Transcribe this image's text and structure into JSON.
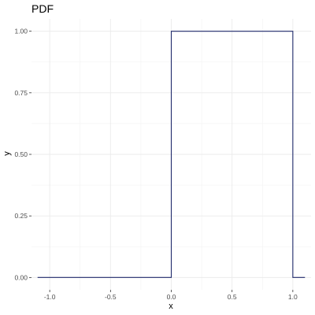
{
  "chart_data": {
    "type": "line",
    "title": "PDF",
    "xlabel": "x",
    "ylabel": "y",
    "xlim": [
      -1.15,
      1.15
    ],
    "ylim": [
      -0.05,
      1.05
    ],
    "x_ticks": [
      -1.0,
      -0.5,
      0.0,
      0.5,
      1.0
    ],
    "x_tick_labels": [
      "-1.0",
      "-0.5",
      "0.0",
      "0.5",
      "1.0"
    ],
    "y_ticks": [
      0.0,
      0.25,
      0.5,
      0.75,
      1.0
    ],
    "y_tick_labels": [
      "0.00",
      "0.25",
      "0.50",
      "0.75",
      "1.00"
    ],
    "grid": true,
    "series": [
      {
        "color": "#1f2a6b",
        "x": [
          -1.1,
          0.0,
          0.0,
          1.0,
          1.0,
          1.1
        ],
        "y": [
          0.0,
          0.0,
          1.0,
          1.0,
          0.0,
          0.0
        ]
      }
    ]
  }
}
